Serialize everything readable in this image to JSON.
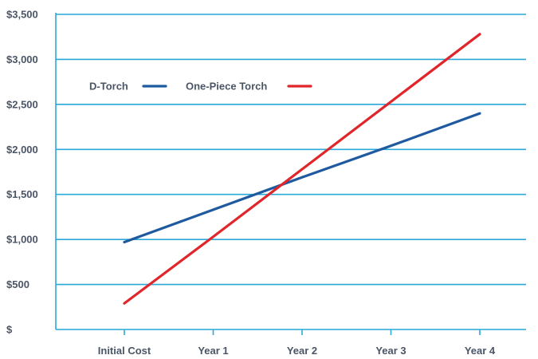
{
  "chart_data": {
    "type": "line",
    "title": "",
    "xlabel": "",
    "ylabel": "",
    "categories": [
      "Initial Cost",
      "Year 1",
      "Year 2",
      "Year 3",
      "Year 4"
    ],
    "yticks": [
      0,
      500,
      1000,
      1500,
      2000,
      2500,
      3000,
      3500
    ],
    "ytick_labels": [
      "$",
      "$500",
      "$1,000",
      "$1,500",
      "$2,000",
      "$2,500",
      "$3,000",
      "$3,500"
    ],
    "ylim": [
      0,
      3500
    ],
    "grid": true,
    "legend_position": "top-left",
    "series": [
      {
        "name": "D-Torch",
        "color": "#1f5aa0",
        "values": [
          970,
          1330,
          1690,
          2040,
          2400
        ]
      },
      {
        "name": "One-Piece Torch",
        "color": "#e0262b",
        "values": [
          290,
          1030,
          1780,
          2530,
          3280
        ]
      }
    ],
    "grid_color": "#29a9d8",
    "text_color": "#4a5566"
  }
}
